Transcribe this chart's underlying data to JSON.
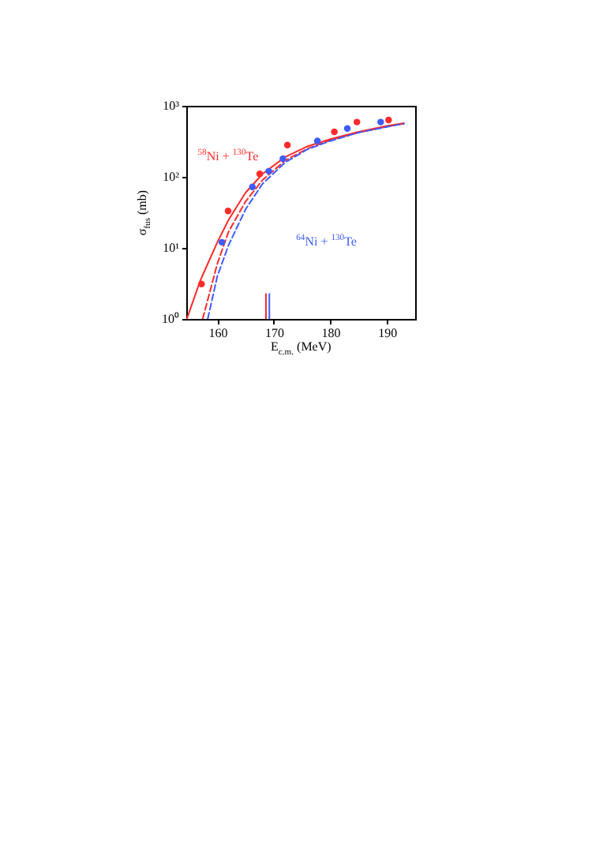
{
  "chart_data": {
    "type": "scatter",
    "xlabel": "E$_{c.m.}$ (MeV)",
    "ylabel": "σ$_{fus}$ (mb)",
    "log": "y",
    "xlim": [
      154.5,
      195
    ],
    "ylim": [
      1,
      1000
    ],
    "xticks": [
      160,
      170,
      180,
      190
    ],
    "yticks": [
      {
        "value": 1,
        "label": "10⁰"
      },
      {
        "value": 10,
        "label": "10¹"
      },
      {
        "value": 100,
        "label": "10²"
      },
      {
        "value": 1000,
        "label": "10³"
      }
    ],
    "grid": false,
    "series": [
      {
        "type": "line",
        "color": "#ff2a2a",
        "line_style": "solid",
        "x": [
          154.6,
          157,
          160,
          162,
          165,
          168,
          172,
          176,
          180,
          185,
          190,
          193
        ],
        "values": [
          1,
          3.5,
          12,
          25,
          60,
          110,
          190,
          270,
          340,
          430,
          520,
          570
        ]
      },
      {
        "type": "line",
        "color": "#ff2a2a",
        "line_style": "dashed",
        "x": [
          157.4,
          160,
          162,
          165,
          168,
          172,
          176,
          180,
          185,
          190,
          193
        ],
        "values": [
          1,
          6,
          17,
          45,
          90,
          170,
          250,
          330,
          420,
          510,
          560
        ]
      },
      {
        "type": "line",
        "color": "#3d5cff",
        "line_style": "dashed",
        "x": [
          158.3,
          160,
          162,
          165,
          168,
          172,
          176,
          180,
          185,
          190,
          193
        ],
        "values": [
          1,
          4,
          11,
          35,
          80,
          160,
          245,
          320,
          420,
          505,
          560
        ]
      },
      {
        "name": "$^{58}$Ni + $^{130}$Te",
        "color": "#ff2a2a",
        "marker": "circle",
        "x": [
          157.2,
          161.9,
          167.5,
          172.4,
          180.7,
          184.7,
          190.3
        ],
        "values": [
          3.1,
          33,
          110,
          280,
          430,
          590,
          630
        ]
      },
      {
        "name": "$^{64}$Ni + $^{130}$Te",
        "color": "#3d5cff",
        "marker": "circle",
        "x": [
          160.8,
          166.2,
          169.1,
          171.6,
          177.7,
          183,
          188.9
        ],
        "values": [
          12,
          72,
          120,
          180,
          320,
          480,
          590
        ]
      }
    ],
    "ref_lines": [
      {
        "axis": "x",
        "value": 168.6,
        "color": "#ff2a2a"
      },
      {
        "axis": "x",
        "value": 169.2,
        "color": "#3d5cff"
      }
    ]
  }
}
